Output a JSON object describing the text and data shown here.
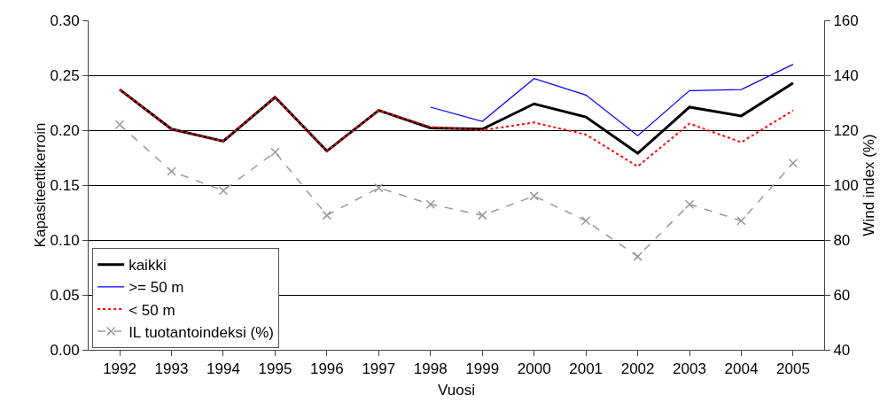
{
  "chart_data": {
    "type": "line",
    "xlabel": "Vuosi",
    "ylabel": "Kapasiteettikerroin",
    "y2label": "Wind index (%)",
    "categories": [
      "1992",
      "1993",
      "1994",
      "1995",
      "1996",
      "1997",
      "1998",
      "1999",
      "2000",
      "2001",
      "2002",
      "2003",
      "2004",
      "2005"
    ],
    "series": [
      {
        "name": "kaikki",
        "color": "#000000",
        "line_style": "solid",
        "marker": "none",
        "values": [
          0.237,
          0.201,
          0.19,
          0.23,
          0.181,
          0.218,
          0.202,
          0.201,
          0.224,
          0.212,
          0.179,
          0.221,
          0.213,
          0.243
        ]
      },
      {
        "name": ">= 50 m",
        "color": "#0000ff",
        "line_style": "solid",
        "marker": "none",
        "values": [
          null,
          null,
          null,
          null,
          null,
          null,
          0.221,
          0.208,
          0.247,
          0.232,
          0.195,
          0.236,
          0.237,
          0.26
        ]
      },
      {
        "name": "< 50 m",
        "color": "#ff0000",
        "line_style": "dotted",
        "marker": "none",
        "values": [
          0.237,
          0.201,
          0.19,
          0.23,
          0.181,
          0.218,
          0.203,
          0.2,
          0.207,
          0.196,
          0.167,
          0.206,
          0.189,
          0.218
        ]
      },
      {
        "name": "IL tuotantoindeksi (%)",
        "color": "#999999",
        "line_style": "dashed",
        "marker": "cross",
        "axis": "y2",
        "values": [
          122,
          105,
          98,
          112,
          89,
          99,
          93,
          89,
          96,
          87,
          74,
          93,
          87,
          108
        ]
      }
    ],
    "ylim": [
      0,
      0.3
    ],
    "yticks": [
      {
        "value": 0,
        "label": "0.00"
      },
      {
        "value": 0.05,
        "label": "0.05"
      },
      {
        "value": 0.1,
        "label": "0.10"
      },
      {
        "value": 0.15,
        "label": "0.15"
      },
      {
        "value": 0.2,
        "label": "0.20"
      },
      {
        "value": 0.25,
        "label": "0.25"
      },
      {
        "value": 0.3,
        "label": "0.30"
      }
    ],
    "y2lim": [
      40,
      160
    ],
    "y2ticks": [
      40,
      60,
      80,
      100,
      120,
      140,
      160
    ],
    "grid": "y",
    "legend": "bottom left"
  }
}
